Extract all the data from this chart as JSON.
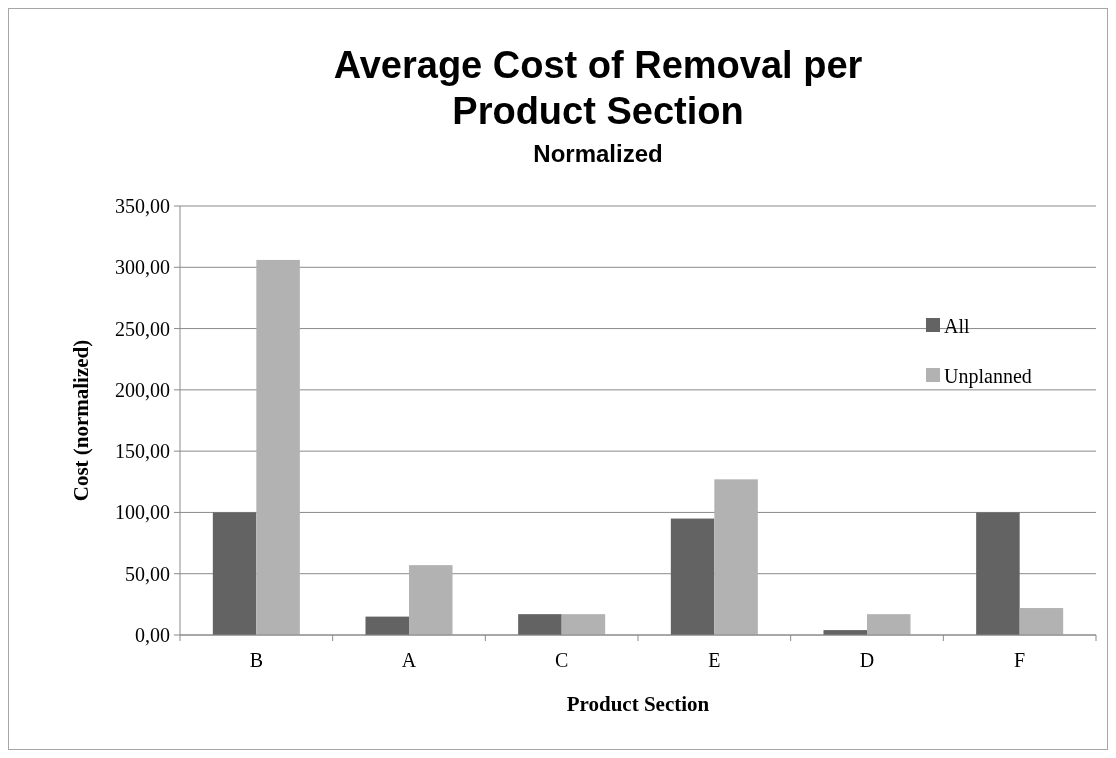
{
  "chart_data": {
    "type": "bar",
    "title": "Average Cost of Removal per Product Section",
    "subtitle": "Normalized",
    "xlabel": "Product Section",
    "ylabel": "Cost (normalized)",
    "categories": [
      "B",
      "A",
      "C",
      "E",
      "D",
      "F"
    ],
    "series": [
      {
        "name": "All",
        "color": "#636363",
        "values": [
          100,
          15,
          17,
          95,
          4,
          100
        ]
      },
      {
        "name": "Unplanned",
        "color": "#b2b2b2",
        "values": [
          306,
          57,
          17,
          127,
          17,
          22
        ]
      }
    ],
    "ylim": [
      0,
      350
    ],
    "yticks": [
      {
        "value": 0,
        "label": "0,00"
      },
      {
        "value": 50,
        "label": "50,00"
      },
      {
        "value": 100,
        "label": "100,00"
      },
      {
        "value": 150,
        "label": "150,00"
      },
      {
        "value": 200,
        "label": "200,00"
      },
      {
        "value": 250,
        "label": "250,00"
      },
      {
        "value": 300,
        "label": "300,00"
      },
      {
        "value": 350,
        "label": "350,00"
      }
    ],
    "grid": "y",
    "legend": "right"
  }
}
